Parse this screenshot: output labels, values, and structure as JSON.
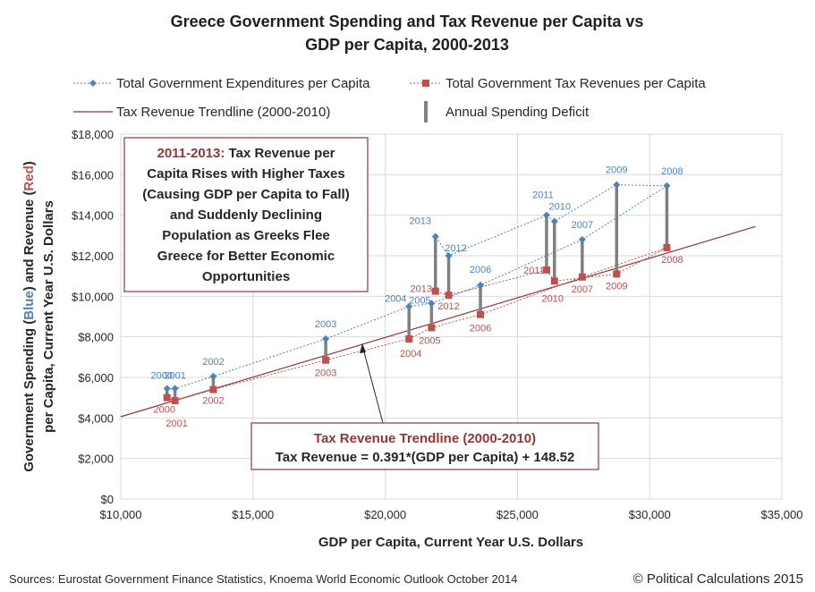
{
  "chart_data": {
    "type": "scatter",
    "title_line1": "Greece Government Spending and Tax Revenue per Capita vs",
    "title_line2": "GDP per Capita, 2000-2013",
    "xlabel": "GDP per Capita, Current Year U.S. Dollars",
    "ylabel_line1_part1": "Government Spending (",
    "ylabel_line1_blue": "Blue",
    "ylabel_line1_part2": ") and Revenue (",
    "ylabel_line1_red": "Red",
    "ylabel_line1_part3": ")",
    "ylabel_line2": "per Capita, Current Year U.S. Dollars",
    "xlim": [
      10000,
      35000
    ],
    "ylim": [
      0,
      18000
    ],
    "x_ticks": [
      "$10,000",
      "$15,000",
      "$20,000",
      "$25,000",
      "$30,000",
      "$35,000"
    ],
    "y_ticks": [
      "$0",
      "$2,000",
      "$4,000",
      "$6,000",
      "$8,000",
      "$10,000",
      "$12,000",
      "$14,000",
      "$16,000",
      "$18,000"
    ],
    "legend": {
      "spending": "Total Government Expenditures per Capita",
      "revenue": "Total Government Tax Revenues per Capita",
      "trendline": "Tax Revenue Trendline (2000-2010)",
      "deficit": "Annual Spending Deficit"
    },
    "points": [
      {
        "year": "2000",
        "gdp": 11750,
        "spending": 5450,
        "revenue": 5000
      },
      {
        "year": "2001",
        "gdp": 12050,
        "spending": 5450,
        "revenue": 4850
      },
      {
        "year": "2002",
        "gdp": 13500,
        "spending": 6050,
        "revenue": 5400
      },
      {
        "year": "2003",
        "gdp": 17750,
        "spending": 7900,
        "revenue": 6850
      },
      {
        "year": "2004",
        "gdp": 20900,
        "spending": 9500,
        "revenue": 7900
      },
      {
        "year": "2005",
        "gdp": 21750,
        "spending": 9650,
        "revenue": 8450
      },
      {
        "year": "2006",
        "gdp": 23600,
        "spending": 10550,
        "revenue": 9100
      },
      {
        "year": "2007",
        "gdp": 27450,
        "spending": 12800,
        "revenue": 10950
      },
      {
        "year": "2008",
        "gdp": 30650,
        "spending": 15450,
        "revenue": 12400
      },
      {
        "year": "2009",
        "gdp": 28750,
        "spending": 15500,
        "revenue": 11100
      },
      {
        "year": "2010",
        "gdp": 26400,
        "spending": 13700,
        "revenue": 10750
      },
      {
        "year": "2011",
        "gdp": 26100,
        "spending": 14000,
        "revenue": 11300
      },
      {
        "year": "2012",
        "gdp": 22400,
        "spending": 12000,
        "revenue": 10050
      },
      {
        "year": "2013",
        "gdp": 21900,
        "spending": 12950,
        "revenue": 10250
      }
    ],
    "trendline": {
      "slope": 0.391,
      "intercept": 148.52,
      "x_start": 10000,
      "x_end": 34000
    },
    "annotation_box_1": {
      "heading": "2011-2013:",
      "line1_rest": " Tax Revenue per",
      "line2": "Capita Rises with Higher Taxes",
      "line3": "(Causing GDP per Capita to Fall)",
      "line4": "and Suddenly Declining",
      "line5": "Population as Greeks Flee",
      "line6": "Greece for Better Economic",
      "line7": "Opportunities"
    },
    "annotation_box_2": {
      "line1": "Tax Revenue Trendline (2000-2010)",
      "line2": "Tax Revenue = 0.391*(GDP per Capita) + 148.52"
    },
    "sources": "Sources:  Eurostat Government  Finance Statistics, Knoema World Economic Outlook October 2014",
    "copyright": "© Political Calculations 2015",
    "colors": {
      "spending": "#4f81bd",
      "revenue": "#c0504d",
      "trendline": "#943634",
      "deficit": "#808080",
      "box_border": "#943634"
    }
  }
}
